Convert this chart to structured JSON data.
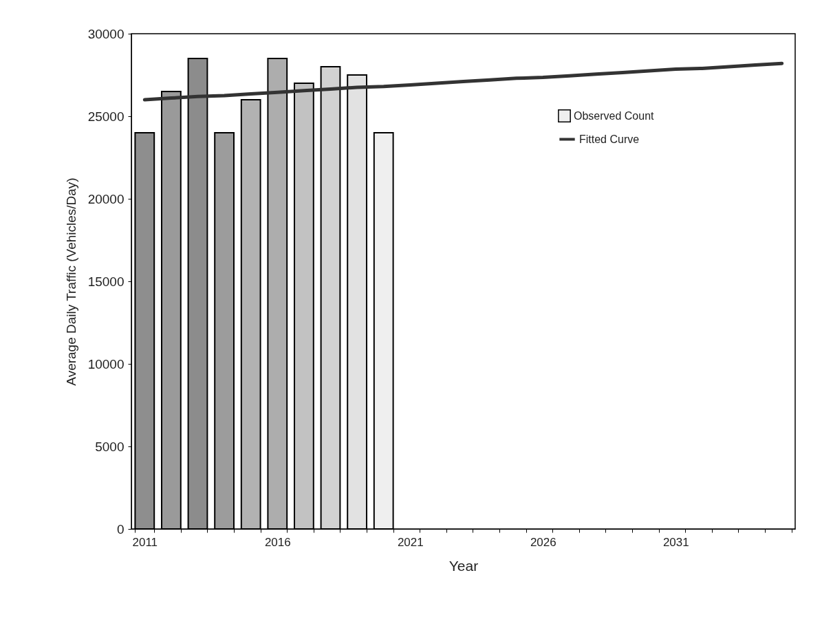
{
  "chart_data": {
    "type": "bar",
    "xlabel": "Year",
    "ylabel": "Average Daily Traffic (Vehicles/Day)",
    "categories": [
      "2011",
      null,
      null,
      null,
      null,
      "2016",
      null,
      null,
      null,
      null,
      "2021",
      null,
      null,
      null,
      null,
      "2026",
      null,
      null,
      null,
      null,
      "2031",
      null,
      null,
      null,
      null
    ],
    "ylim": [
      0,
      30000
    ],
    "yticks": [
      0,
      5000,
      10000,
      15000,
      20000,
      25000,
      30000
    ],
    "grid": false,
    "legend": "top right",
    "series": [
      {
        "name": "Observed Count",
        "colors": [
          "#8e8e8e",
          "#9a9a9a",
          "#8c8c8c",
          "#9c9c9c",
          "#b2b2b2",
          "#adadad",
          "#c2c2c2",
          "#d2d2d2",
          "#e2e2e2",
          "#efefef",
          null,
          null,
          null,
          null,
          null,
          null,
          null,
          null,
          null,
          null,
          null,
          null,
          null,
          null,
          null
        ],
        "values": [
          24000,
          26500,
          28500,
          24000,
          26000,
          28500,
          27000,
          28000,
          27500,
          24000,
          null,
          null,
          null,
          null,
          null,
          null,
          null,
          null,
          null,
          null,
          null,
          null,
          null,
          null,
          null
        ]
      },
      {
        "name": "Fitted Curve",
        "type": "line",
        "color": "#333333",
        "marker": "none",
        "line_style": "solid",
        "values": [
          26000,
          26100,
          26200,
          26250,
          26350,
          26450,
          26550,
          26650,
          26750,
          26800,
          26900,
          27000,
          27100,
          27200,
          27300,
          27350,
          27450,
          27550,
          27650,
          27750,
          27850,
          27900,
          28000,
          28100,
          28200
        ]
      }
    ]
  }
}
